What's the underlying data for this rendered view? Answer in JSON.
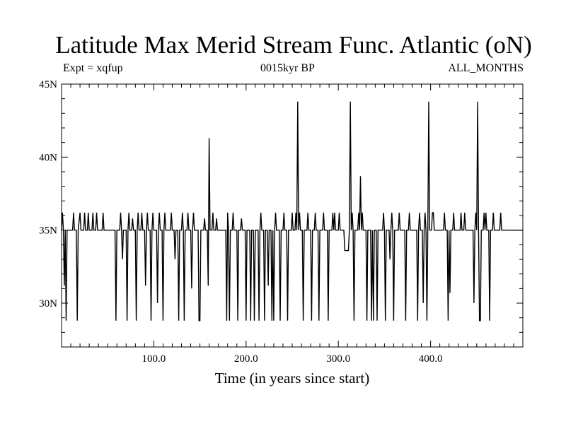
{
  "page": {
    "title": "Latitude Max Merid Stream Func. Atlantic (oN)",
    "expt": "Expt = xqfup",
    "period": "0015kyr BP",
    "months": "ALL_MONTHS"
  },
  "chart_data": {
    "type": "line",
    "title": "Latitude Max Merid Stream Func. Atlantic (oN)",
    "xlabel": "Time (in years since start)",
    "ylabel": "",
    "xlim": [
      0,
      500
    ],
    "ylim": [
      27,
      45
    ],
    "x_ticks": [
      {
        "value": 100,
        "label": "100.0"
      },
      {
        "value": 200,
        "label": "200.0"
      },
      {
        "value": 300,
        "label": "300.0"
      },
      {
        "value": 400,
        "label": "400.0"
      }
    ],
    "y_ticks": [
      {
        "value": 30,
        "label": "30N"
      },
      {
        "value": 35,
        "label": "35N"
      },
      {
        "value": 40,
        "label": "40N"
      },
      {
        "value": 45,
        "label": "45N"
      }
    ],
    "baseline": 35,
    "grid": false,
    "series": [
      {
        "name": "",
        "color": "#000000",
        "points": [
          [
            0,
            35
          ],
          [
            1,
            36.2
          ],
          [
            2,
            35
          ],
          [
            3,
            31.2
          ],
          [
            4,
            35
          ],
          [
            5,
            28.8
          ],
          [
            6,
            35
          ],
          [
            12,
            35
          ],
          [
            13,
            36.2
          ],
          [
            14,
            35
          ],
          [
            16,
            35
          ],
          [
            17,
            28.8
          ],
          [
            18,
            35
          ],
          [
            20,
            36.2
          ],
          [
            21,
            35
          ],
          [
            24,
            35
          ],
          [
            25,
            36.2
          ],
          [
            26,
            35
          ],
          [
            28,
            35
          ],
          [
            29,
            36.2
          ],
          [
            30,
            35
          ],
          [
            33,
            35
          ],
          [
            34,
            36.2
          ],
          [
            35,
            35
          ],
          [
            37,
            35
          ],
          [
            38,
            36.2
          ],
          [
            39,
            35
          ],
          [
            44,
            35
          ],
          [
            45,
            36.2
          ],
          [
            46,
            35
          ],
          [
            58,
            35
          ],
          [
            59,
            28.8
          ],
          [
            60,
            35
          ],
          [
            63,
            35
          ],
          [
            64,
            36.2
          ],
          [
            65,
            35
          ],
          [
            66,
            33
          ],
          [
            67,
            35
          ],
          [
            70,
            35
          ],
          [
            71,
            28.8
          ],
          [
            72,
            35
          ],
          [
            73,
            36.2
          ],
          [
            74,
            35
          ],
          [
            76,
            35
          ],
          [
            77,
            35.8
          ],
          [
            78,
            35
          ],
          [
            80,
            35
          ],
          [
            81,
            28.8
          ],
          [
            82,
            35
          ],
          [
            83,
            36.2
          ],
          [
            84,
            35
          ],
          [
            86,
            35
          ],
          [
            87,
            36.2
          ],
          [
            88,
            35
          ],
          [
            90,
            35
          ],
          [
            91,
            31.2
          ],
          [
            92,
            35
          ],
          [
            93,
            36.2
          ],
          [
            94,
            35
          ],
          [
            96,
            35
          ],
          [
            97,
            28.8
          ],
          [
            98,
            35
          ],
          [
            99,
            36.2
          ],
          [
            100,
            35
          ],
          [
            103,
            35
          ],
          [
            104,
            30
          ],
          [
            105,
            35
          ],
          [
            106,
            36.2
          ],
          [
            107,
            35
          ],
          [
            109,
            35
          ],
          [
            110,
            28.8
          ],
          [
            111,
            35
          ],
          [
            112,
            36.2
          ],
          [
            113,
            35
          ],
          [
            118,
            35
          ],
          [
            119,
            36.2
          ],
          [
            120,
            35
          ],
          [
            122,
            35
          ],
          [
            123,
            33
          ],
          [
            124,
            35
          ],
          [
            126,
            35
          ],
          [
            127,
            28.8
          ],
          [
            128,
            35
          ],
          [
            130,
            35
          ],
          [
            131,
            36.2
          ],
          [
            132,
            35
          ],
          [
            133,
            28.8
          ],
          [
            134,
            35
          ],
          [
            136,
            35
          ],
          [
            137,
            36.2
          ],
          [
            138,
            35
          ],
          [
            140,
            35
          ],
          [
            141,
            31
          ],
          [
            142,
            35
          ],
          [
            143,
            36.2
          ],
          [
            144,
            35
          ],
          [
            148,
            35
          ],
          [
            149,
            28.8
          ],
          [
            150,
            28.8
          ],
          [
            151,
            35
          ],
          [
            154,
            35
          ],
          [
            155,
            35.8
          ],
          [
            156,
            35
          ],
          [
            158,
            35
          ],
          [
            159,
            31.2
          ],
          [
            160,
            41.3
          ],
          [
            161,
            35
          ],
          [
            163,
            35
          ],
          [
            164,
            36.2
          ],
          [
            165,
            35
          ],
          [
            167,
            35
          ],
          [
            168,
            35.8
          ],
          [
            169,
            35
          ],
          [
            178,
            35
          ],
          [
            179,
            28.8
          ],
          [
            180,
            36.2
          ],
          [
            181,
            35
          ],
          [
            182,
            28.8
          ],
          [
            183,
            35
          ],
          [
            185,
            35
          ],
          [
            186,
            36.2
          ],
          [
            187,
            35
          ],
          [
            190,
            35
          ],
          [
            191,
            28.8
          ],
          [
            192,
            35
          ],
          [
            194,
            35
          ],
          [
            195,
            35.8
          ],
          [
            196,
            35
          ],
          [
            199,
            35
          ],
          [
            200,
            28.8
          ],
          [
            201,
            35
          ],
          [
            204,
            35
          ],
          [
            205,
            28.8
          ],
          [
            206,
            35
          ],
          [
            208,
            35
          ],
          [
            209,
            28.8
          ],
          [
            210,
            35
          ],
          [
            213,
            35
          ],
          [
            214,
            28.8
          ],
          [
            215,
            35
          ],
          [
            216,
            36.2
          ],
          [
            217,
            35
          ],
          [
            219,
            35
          ],
          [
            220,
            28.8
          ],
          [
            221,
            35
          ],
          [
            223,
            35
          ],
          [
            224,
            31.2
          ],
          [
            225,
            35
          ],
          [
            227,
            35
          ],
          [
            228,
            28.8
          ],
          [
            229,
            35
          ],
          [
            230,
            28.8
          ],
          [
            231,
            35
          ],
          [
            232,
            36.2
          ],
          [
            233,
            35
          ],
          [
            236,
            35
          ],
          [
            237,
            28.8
          ],
          [
            238,
            35
          ],
          [
            240,
            35
          ],
          [
            241,
            36.2
          ],
          [
            242,
            35
          ],
          [
            244,
            35
          ],
          [
            245,
            28.8
          ],
          [
            246,
            35
          ],
          [
            249,
            35
          ],
          [
            250,
            36.2
          ],
          [
            251,
            35
          ],
          [
            253,
            35
          ],
          [
            254,
            36.2
          ],
          [
            255,
            35
          ],
          [
            256,
            43.8
          ],
          [
            257,
            35
          ],
          [
            258,
            36.2
          ],
          [
            259,
            35
          ],
          [
            261,
            35
          ],
          [
            262,
            28.8
          ],
          [
            263,
            35
          ],
          [
            266,
            35
          ],
          [
            267,
            36.2
          ],
          [
            268,
            35
          ],
          [
            270,
            35
          ],
          [
            271,
            28.8
          ],
          [
            272,
            35
          ],
          [
            274,
            35
          ],
          [
            275,
            36.2
          ],
          [
            276,
            35
          ],
          [
            278,
            35
          ],
          [
            279,
            28.8
          ],
          [
            280,
            35
          ],
          [
            283,
            35
          ],
          [
            284,
            36.2
          ],
          [
            285,
            35
          ],
          [
            288,
            35
          ],
          [
            289,
            28.8
          ],
          [
            290,
            35
          ],
          [
            293,
            35
          ],
          [
            294,
            36.2
          ],
          [
            295,
            35
          ],
          [
            296,
            36.2
          ],
          [
            297,
            35
          ],
          [
            300,
            35
          ],
          [
            301,
            36.2
          ],
          [
            302,
            35
          ],
          [
            306,
            35
          ],
          [
            307,
            33.6
          ],
          [
            311,
            33.6
          ],
          [
            312,
            35
          ],
          [
            313,
            43.8
          ],
          [
            314,
            35
          ],
          [
            315,
            36.2
          ],
          [
            316,
            35
          ],
          [
            317,
            28.8
          ],
          [
            318,
            35
          ],
          [
            321,
            35
          ],
          [
            322,
            36.2
          ],
          [
            323,
            35
          ],
          [
            324,
            38.7
          ],
          [
            325,
            35
          ],
          [
            326,
            36.2
          ],
          [
            327,
            35
          ],
          [
            330,
            35
          ],
          [
            331,
            28.8
          ],
          [
            332,
            35
          ],
          [
            335,
            35
          ],
          [
            336,
            28.8
          ],
          [
            337,
            35
          ],
          [
            338,
            28.8
          ],
          [
            339,
            35
          ],
          [
            341,
            35
          ],
          [
            342,
            28.8
          ],
          [
            343,
            35
          ],
          [
            348,
            35
          ],
          [
            349,
            36.2
          ],
          [
            350,
            35
          ],
          [
            351,
            28.8
          ],
          [
            352,
            35
          ],
          [
            355,
            35
          ],
          [
            356,
            33
          ],
          [
            357,
            35
          ],
          [
            358,
            36.2
          ],
          [
            359,
            35
          ],
          [
            360,
            28.8
          ],
          [
            361,
            35
          ],
          [
            365,
            35
          ],
          [
            366,
            36.2
          ],
          [
            367,
            35
          ],
          [
            372,
            35
          ],
          [
            373,
            28.8
          ],
          [
            374,
            35
          ],
          [
            376,
            35
          ],
          [
            377,
            36.2
          ],
          [
            378,
            35
          ],
          [
            385,
            35
          ],
          [
            386,
            28.8
          ],
          [
            387,
            35
          ],
          [
            388,
            36.2
          ],
          [
            389,
            35
          ],
          [
            391,
            35
          ],
          [
            392,
            30
          ],
          [
            393,
            35
          ],
          [
            394,
            36.2
          ],
          [
            395,
            35
          ],
          [
            396,
            28.8
          ],
          [
            397,
            35
          ],
          [
            398,
            43.8
          ],
          [
            399,
            35
          ],
          [
            401,
            35
          ],
          [
            402,
            36.2
          ],
          [
            403,
            36.2
          ],
          [
            404,
            35
          ],
          [
            414,
            35
          ],
          [
            415,
            36.2
          ],
          [
            416,
            35
          ],
          [
            418,
            35
          ],
          [
            419,
            28.8
          ],
          [
            420,
            35
          ],
          [
            421,
            30.7
          ],
          [
            422,
            35
          ],
          [
            424,
            35
          ],
          [
            425,
            36.2
          ],
          [
            426,
            35
          ],
          [
            432,
            35
          ],
          [
            433,
            36.2
          ],
          [
            434,
            35
          ],
          [
            436,
            35
          ],
          [
            437,
            36.2
          ],
          [
            438,
            35
          ],
          [
            446,
            35
          ],
          [
            447,
            30
          ],
          [
            448,
            35
          ],
          [
            449,
            36.2
          ],
          [
            450,
            35
          ],
          [
            451,
            43.8
          ],
          [
            452,
            35
          ],
          [
            453,
            28.8
          ],
          [
            454,
            28.8
          ],
          [
            455,
            35
          ],
          [
            457,
            35
          ],
          [
            458,
            36.2
          ],
          [
            459,
            35
          ],
          [
            460,
            36.2
          ],
          [
            461,
            35
          ],
          [
            463,
            35
          ],
          [
            464,
            28.8
          ],
          [
            465,
            35
          ],
          [
            467,
            35
          ],
          [
            468,
            36.2
          ],
          [
            469,
            35
          ],
          [
            475,
            35
          ],
          [
            476,
            36.2
          ],
          [
            477,
            35
          ],
          [
            480,
            35
          ],
          [
            500,
            35
          ]
        ]
      }
    ]
  }
}
